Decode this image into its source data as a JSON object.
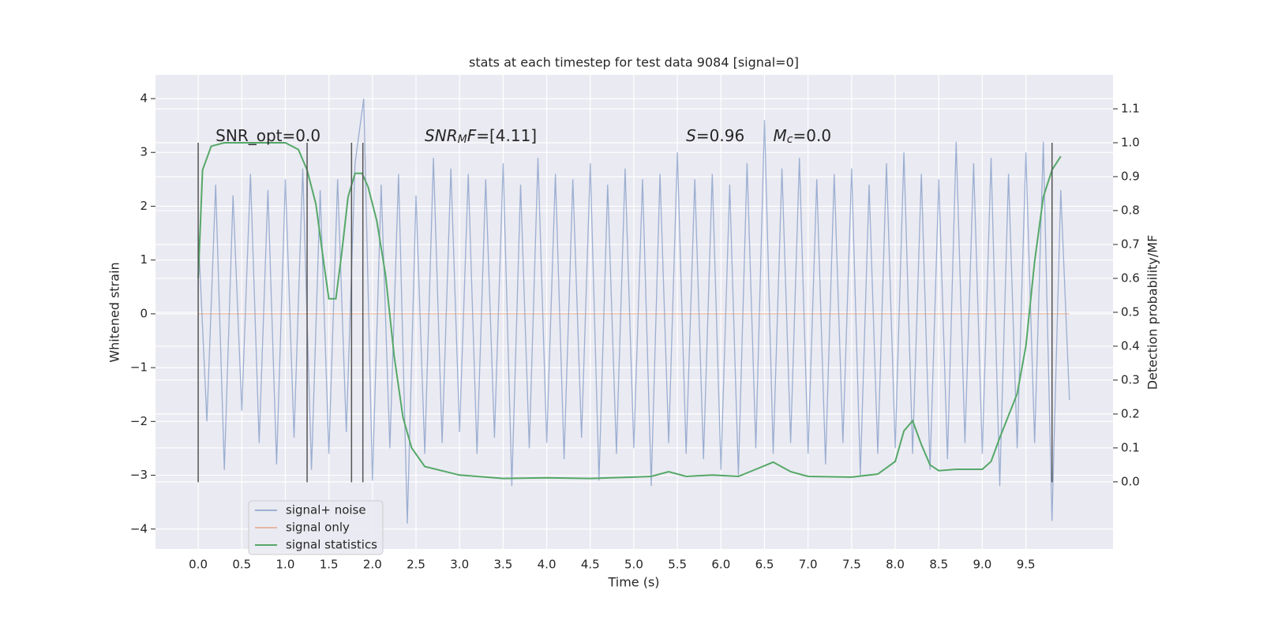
{
  "chart_data": {
    "type": "line",
    "title": "stats at each timestep for test data 9084 [signal=0]",
    "xlabel": "Time (s)",
    "ylabel": "Whitened strain",
    "y2label": "Detection probability/MF",
    "xlim": [
      -0.49,
      10.5
    ],
    "ylim": [
      -4.37,
      4.44
    ],
    "y2lim": [
      -0.198,
      1.2
    ],
    "xticks": [
      {
        "value": 0,
        "label": "0.0"
      },
      0.5,
      {
        "value": 1,
        "label": "1.0"
      },
      1.5,
      {
        "value": 2,
        "label": "2.0"
      },
      2.5,
      {
        "value": 3,
        "label": "3.0"
      },
      3.5,
      {
        "value": 4,
        "label": "4.0"
      },
      4.5,
      {
        "value": 5,
        "label": "5.0"
      },
      5.5,
      {
        "value": 6,
        "label": "6.0"
      },
      6.5,
      {
        "value": 7,
        "label": "7.0"
      },
      7.5,
      {
        "value": 8,
        "label": "8.0"
      },
      8.5,
      {
        "value": 9,
        "label": "9.0"
      },
      9.5
    ],
    "yticks": [
      {
        "value": -4,
        "label": "−4"
      },
      {
        "value": -3,
        "label": "−3"
      },
      {
        "value": -2,
        "label": "−2"
      },
      {
        "value": -1,
        "label": "−1"
      },
      0,
      1,
      2,
      3,
      4
    ],
    "y2ticks": [
      {
        "value": 0,
        "label": "0.0"
      },
      0.1,
      0.2,
      0.3,
      0.4,
      0.5,
      0.6,
      0.7,
      0.8,
      0.9,
      {
        "value": 1,
        "label": "1.0"
      },
      1.1
    ],
    "grid": true,
    "legend": "lower left",
    "series": [
      {
        "name": "signal+ noise",
        "color": "#4c72b0",
        "axis": "y",
        "x": [
          0.0,
          0.1,
          0.2,
          0.3,
          0.4,
          0.5,
          0.6,
          0.7,
          0.8,
          0.9,
          1.0,
          1.1,
          1.2,
          1.3,
          1.4,
          1.5,
          1.6,
          1.7,
          1.8,
          1.9,
          2.0,
          2.1,
          2.2,
          2.3,
          2.4,
          2.5,
          2.6,
          2.7,
          2.8,
          2.9,
          3.0,
          3.1,
          3.2,
          3.3,
          3.4,
          3.5,
          3.6,
          3.7,
          3.8,
          3.9,
          4.0,
          4.1,
          4.2,
          4.3,
          4.4,
          4.5,
          4.6,
          4.7,
          4.8,
          4.9,
          5.0,
          5.1,
          5.2,
          5.3,
          5.4,
          5.5,
          5.6,
          5.7,
          5.8,
          5.9,
          6.0,
          6.1,
          6.2,
          6.3,
          6.4,
          6.5,
          6.6,
          6.7,
          6.8,
          6.9,
          7.0,
          7.1,
          7.2,
          7.3,
          7.4,
          7.5,
          7.6,
          7.7,
          7.8,
          7.9,
          8.0,
          8.1,
          8.2,
          8.3,
          8.4,
          8.5,
          8.6,
          8.7,
          8.8,
          8.9,
          9.0,
          9.1,
          9.2,
          9.3,
          9.4,
          9.5,
          9.6,
          9.7,
          9.8,
          9.9,
          10.0
        ],
        "values": [
          1.5,
          -2.0,
          2.4,
          -2.9,
          2.2,
          -1.8,
          2.6,
          -2.4,
          2.3,
          -2.8,
          2.5,
          -2.3,
          2.7,
          -2.9,
          2.3,
          -2.6,
          2.5,
          -2.2,
          2.8,
          4.0,
          -3.1,
          2.4,
          -2.5,
          2.6,
          -3.9,
          2.2,
          -2.6,
          2.9,
          -2.4,
          2.7,
          -2.2,
          2.6,
          -2.6,
          2.5,
          -2.3,
          2.8,
          -3.2,
          2.4,
          -2.5,
          2.9,
          -2.4,
          2.6,
          -2.7,
          2.5,
          -2.3,
          2.8,
          -3.1,
          2.4,
          -2.6,
          2.7,
          -2.5,
          2.5,
          -3.2,
          2.6,
          -2.4,
          3.0,
          -2.6,
          2.5,
          -2.7,
          2.6,
          -2.9,
          2.4,
          -3.0,
          2.8,
          -2.5,
          3.6,
          -2.6,
          2.7,
          -2.4,
          2.9,
          -2.6,
          2.5,
          -2.8,
          2.6,
          -2.4,
          2.7,
          -3.0,
          2.4,
          -2.6,
          2.8,
          -2.5,
          3.0,
          -2.6,
          2.6,
          -2.9,
          2.5,
          -2.7,
          3.2,
          -2.4,
          2.8,
          -2.6,
          2.9,
          -3.2,
          2.6,
          -2.5,
          3.0,
          -2.4,
          3.2,
          -3.85,
          2.3,
          -1.6
        ]
      },
      {
        "name": "signal only",
        "color": "#dd8452",
        "axis": "y",
        "x": [
          0.0,
          10.0
        ],
        "values": [
          0,
          0
        ]
      },
      {
        "name": "signal statistics",
        "color": "#55a868",
        "axis": "y2",
        "x": [
          0,
          0.05,
          0.15,
          0.3,
          1.0,
          1.15,
          1.25,
          1.35,
          1.45,
          1.5,
          1.58,
          1.65,
          1.72,
          1.8,
          1.88,
          1.95,
          2.05,
          2.15,
          2.25,
          2.35,
          2.45,
          2.6,
          3.0,
          3.5,
          4.0,
          4.5,
          5.0,
          5.2,
          5.4,
          5.6,
          5.9,
          6.2,
          6.4,
          6.6,
          6.8,
          7.0,
          7.5,
          7.8,
          8.0,
          8.1,
          8.2,
          8.3,
          8.4,
          8.5,
          8.7,
          9.0,
          9.1,
          9.2,
          9.4,
          9.5,
          9.6,
          9.7,
          9.8,
          9.9
        ],
        "values": [
          0.6,
          0.92,
          0.99,
          1.0,
          1.0,
          0.98,
          0.92,
          0.82,
          0.63,
          0.54,
          0.54,
          0.68,
          0.84,
          0.91,
          0.91,
          0.87,
          0.77,
          0.61,
          0.37,
          0.19,
          0.1,
          0.045,
          0.02,
          0.01,
          0.012,
          0.01,
          0.014,
          0.016,
          0.03,
          0.016,
          0.02,
          0.016,
          0.037,
          0.058,
          0.03,
          0.016,
          0.014,
          0.023,
          0.06,
          0.15,
          0.18,
          0.11,
          0.05,
          0.033,
          0.037,
          0.037,
          0.06,
          0.13,
          0.26,
          0.4,
          0.65,
          0.84,
          0.92,
          0.96
        ]
      }
    ],
    "vlines": {
      "x": [
        0.0,
        1.25,
        1.76,
        1.89,
        9.8
      ],
      "ymin": -3.13,
      "ymax": 3.18,
      "color": "#555555"
    },
    "annotations": [
      {
        "x": 0.2,
        "y": 3.3,
        "parts": [
          {
            "text": "SNR_opt=0.0",
            "style": "normal"
          }
        ]
      },
      {
        "x": 2.6,
        "y": 3.3,
        "parts": [
          {
            "text": "SNR",
            "style": "italic"
          },
          {
            "text": "M",
            "style": "italic-sub"
          },
          {
            "text": "F",
            "style": "italic"
          },
          {
            "text": "=[4.11]",
            "style": "normal"
          }
        ]
      },
      {
        "x": 5.6,
        "y": 3.3,
        "parts": [
          {
            "text": "S",
            "style": "italic"
          },
          {
            "text": "=0.96",
            "style": "normal"
          }
        ]
      },
      {
        "x": 6.6,
        "y": 3.3,
        "parts": [
          {
            "text": "M",
            "style": "italic"
          },
          {
            "text": "c",
            "style": "italic-sub"
          },
          {
            "text": "=0.0",
            "style": "normal"
          }
        ]
      }
    ]
  }
}
